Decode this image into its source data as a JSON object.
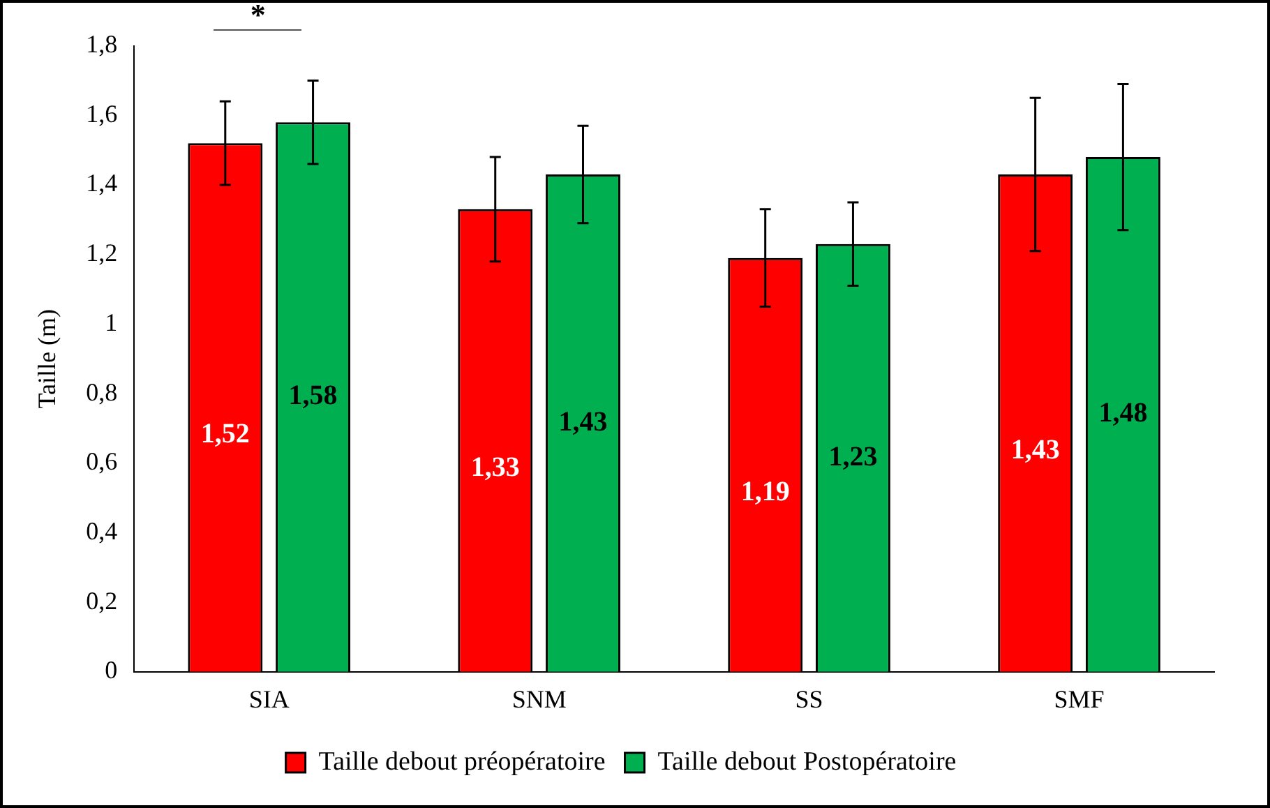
{
  "chart_data": {
    "type": "bar",
    "ylabel": "Taille (m)",
    "categories": [
      "SIA",
      "SNM",
      "SS",
      "SMF"
    ],
    "series": [
      {
        "name": "Taille debout préopératoire",
        "color": "#ff0000",
        "values": [
          1.52,
          1.33,
          1.19,
          1.43
        ],
        "errors": [
          0.12,
          0.15,
          0.14,
          0.22
        ],
        "value_labels": [
          "1,52",
          "1,33",
          "1,19",
          "1,43"
        ]
      },
      {
        "name": "Taille debout Postopératoire",
        "color": "#00b050",
        "values": [
          1.58,
          1.43,
          1.23,
          1.48
        ],
        "errors": [
          0.12,
          0.14,
          0.12,
          0.21
        ],
        "value_labels": [
          "1,58",
          "1,43",
          "1,23",
          "1,48"
        ]
      }
    ],
    "ylim": [
      0,
      1.8
    ],
    "yticks": [
      0,
      {
        "value": 0.2,
        "label": "0,2"
      },
      {
        "value": 0.4,
        "label": "0,4"
      },
      {
        "value": 0.6,
        "label": "0,6"
      },
      {
        "value": 0.8,
        "label": "0,8"
      },
      1,
      {
        "value": 1.2,
        "label": "1,2"
      },
      {
        "value": 1.4,
        "label": "1,4"
      },
      {
        "value": 1.6,
        "label": "1,6"
      },
      {
        "value": 1.8,
        "label": "1,8"
      }
    ],
    "annotations": [
      "*"
    ],
    "grid": false,
    "legend": "bottom"
  }
}
